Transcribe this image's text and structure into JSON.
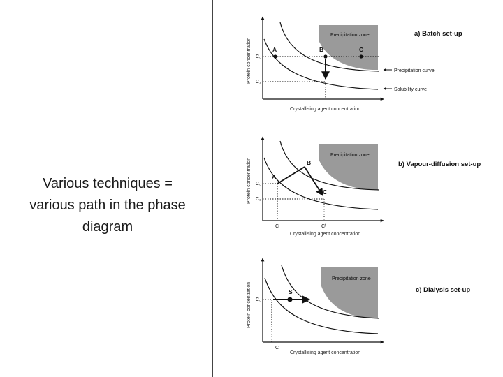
{
  "caption_lines": [
    "Various techniques =",
    "various path in the phase",
    "diagram"
  ],
  "colors": {
    "precipitation_zone": "#9a9a9a",
    "axes": "#111111",
    "curves": "#111111"
  },
  "panels": [
    {
      "id": "a",
      "title": "a)   Batch set-up",
      "zone_label": "Precipitation zone",
      "xlabel": "Crystallising agent concentration",
      "ylabel": "Protein concentration",
      "y_ticks": [
        "C₀",
        "C₁"
      ],
      "points": [
        "A",
        "B",
        "C"
      ],
      "callouts": [
        "Precipitation curve",
        "Solubility curve"
      ]
    },
    {
      "id": "b",
      "title": "b)   Vapour-diffusion set-up",
      "zone_label": "Precipitation zone",
      "xlabel": "Crystallising agent concentration",
      "ylabel": "Protein concentration",
      "y_ticks": [
        "C₀",
        "C₁"
      ],
      "x_ticks": [
        "Cᵢ",
        "Cᶠ"
      ],
      "points": [
        "A",
        "B",
        "C"
      ]
    },
    {
      "id": "c",
      "title": "c)   Dialysis set-up",
      "zone_label": "Precipitation zone",
      "xlabel": "Crystallising agent concentration",
      "ylabel": "Protein concentration",
      "y_ticks": [
        "C₀"
      ],
      "x_ticks": [
        "Cᵢ"
      ],
      "points": [
        "S"
      ]
    }
  ]
}
